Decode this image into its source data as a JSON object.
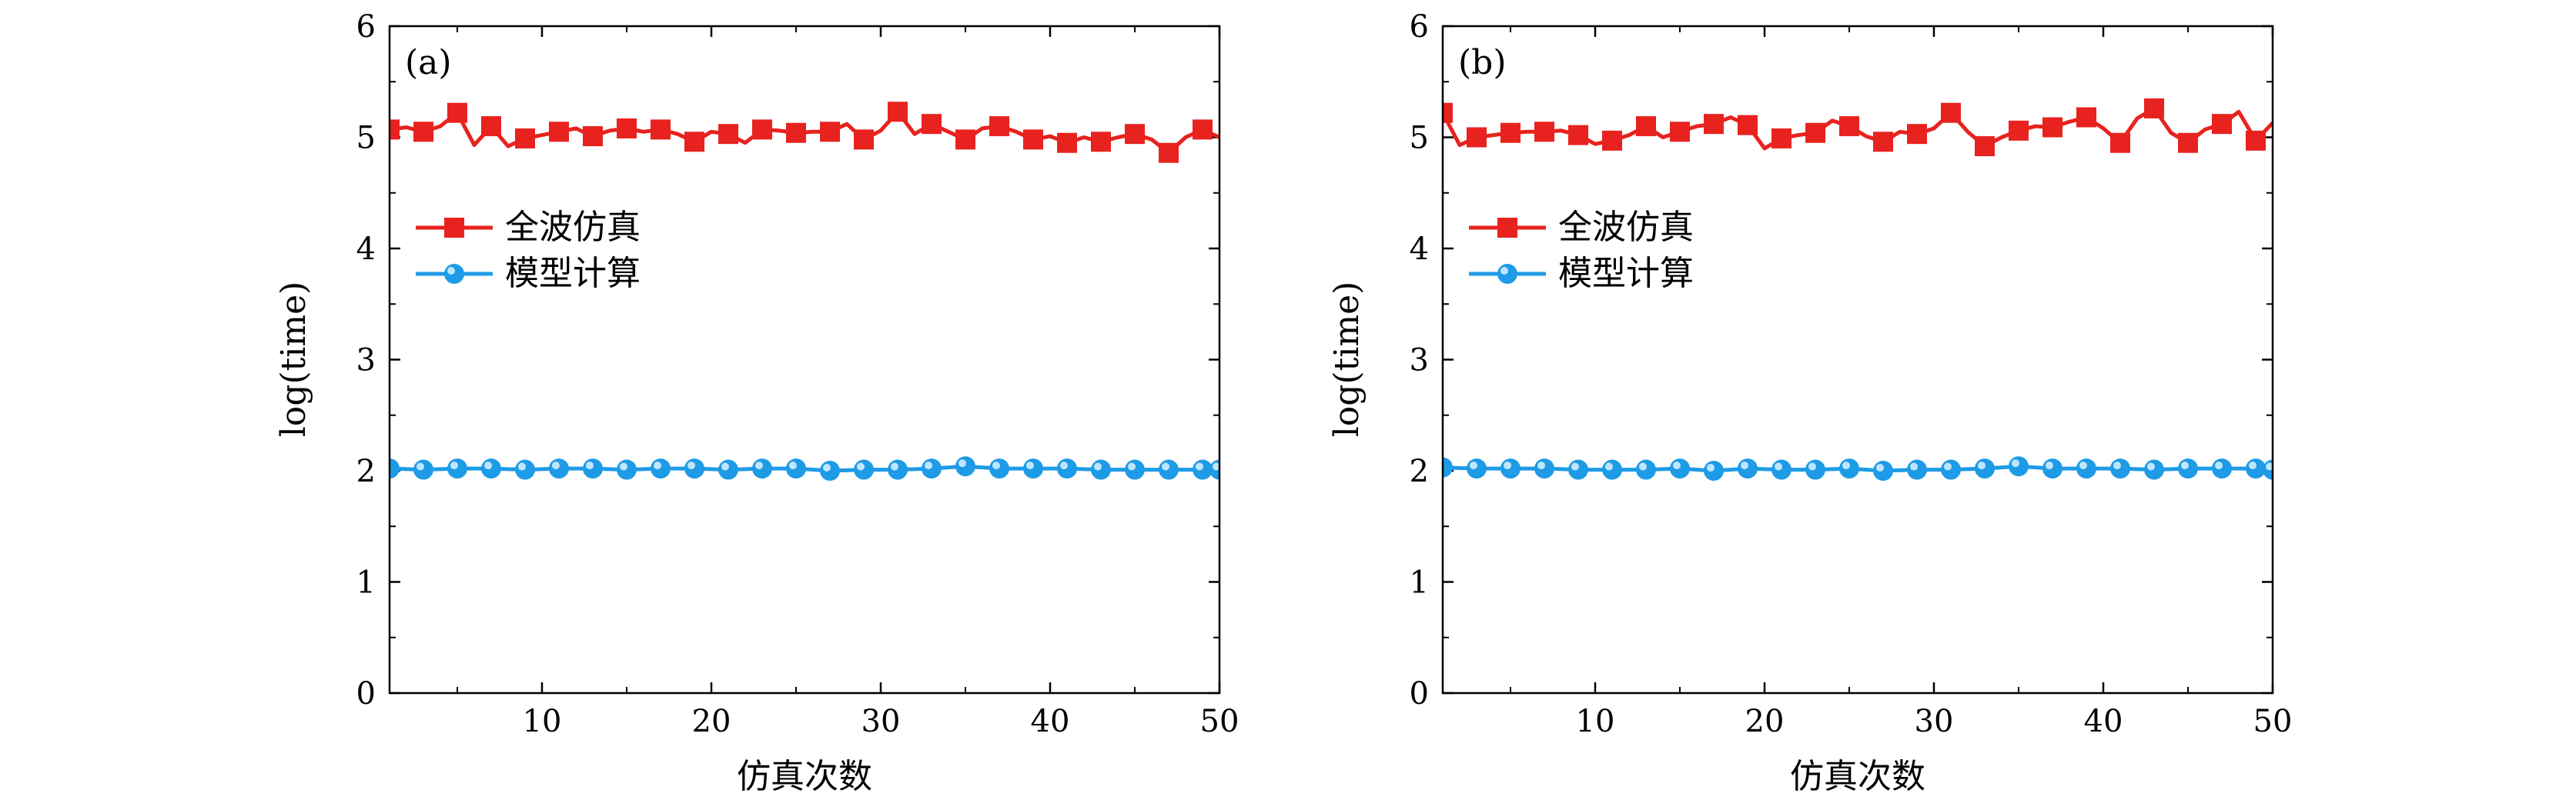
{
  "chart_data": [
    {
      "type": "line",
      "panel_label": "(a)",
      "xlabel": "仿真次数",
      "ylabel": "log(time)",
      "xlim": [
        1,
        50
      ],
      "ylim": [
        0,
        6
      ],
      "xticks": [
        10,
        20,
        30,
        40,
        50
      ],
      "yticks": [
        0,
        1,
        2,
        3,
        4,
        5,
        6
      ],
      "legend_position": "middle-left",
      "series": [
        {
          "name": "全波仿真",
          "color": "#e8221e",
          "marker": "square",
          "x": [
            1,
            2,
            3,
            4,
            5,
            6,
            7,
            8,
            9,
            10,
            11,
            12,
            13,
            14,
            15,
            16,
            17,
            18,
            19,
            20,
            21,
            22,
            23,
            24,
            25,
            26,
            27,
            28,
            29,
            30,
            31,
            32,
            33,
            34,
            35,
            36,
            37,
            38,
            39,
            40,
            41,
            42,
            43,
            44,
            45,
            46,
            47,
            48,
            49,
            50
          ],
          "values": [
            5.07,
            5.09,
            5.05,
            5.1,
            5.22,
            4.93,
            5.1,
            4.92,
            4.99,
            5.02,
            5.05,
            5.08,
            5.01,
            5.06,
            5.08,
            5.05,
            5.07,
            5.03,
            4.96,
            5.05,
            5.03,
            4.95,
            5.07,
            5.06,
            5.04,
            5.05,
            5.05,
            5.12,
            4.98,
            5.06,
            5.23,
            5.03,
            5.12,
            5.05,
            4.98,
            5.08,
            5.1,
            5.05,
            4.98,
            5.01,
            4.95,
            5.0,
            4.96,
            5.0,
            5.03,
            4.98,
            4.86,
            5.0,
            5.07,
            5.0
          ]
        },
        {
          "name": "模型计算",
          "color": "#1e9be6",
          "marker": "circle",
          "x": [
            1,
            3,
            5,
            7,
            9,
            11,
            13,
            15,
            17,
            19,
            21,
            23,
            25,
            27,
            29,
            31,
            33,
            35,
            37,
            39,
            41,
            43,
            45,
            47,
            49,
            50
          ],
          "values": [
            2.02,
            2.01,
            2.02,
            2.02,
            2.01,
            2.02,
            2.02,
            2.01,
            2.02,
            2.02,
            2.01,
            2.02,
            2.02,
            2.0,
            2.01,
            2.01,
            2.02,
            2.04,
            2.02,
            2.02,
            2.02,
            2.01,
            2.01,
            2.01,
            2.01,
            2.01
          ]
        }
      ]
    },
    {
      "type": "line",
      "panel_label": "(b)",
      "xlabel": "仿真次数",
      "ylabel": "log(time)",
      "xlim": [
        1,
        50
      ],
      "ylim": [
        0,
        6
      ],
      "xticks": [
        10,
        20,
        30,
        40,
        50
      ],
      "yticks": [
        0,
        1,
        2,
        3,
        4,
        5,
        6
      ],
      "legend_position": "middle-left",
      "series": [
        {
          "name": "全波仿真",
          "color": "#e8221e",
          "marker": "square",
          "x": [
            1,
            2,
            3,
            4,
            5,
            6,
            7,
            8,
            9,
            10,
            11,
            12,
            13,
            14,
            15,
            16,
            17,
            18,
            19,
            20,
            21,
            22,
            23,
            24,
            25,
            26,
            27,
            28,
            29,
            30,
            31,
            32,
            33,
            34,
            35,
            36,
            37,
            38,
            39,
            40,
            41,
            42,
            43,
            44,
            45,
            46,
            47,
            48,
            49,
            50
          ],
          "values": [
            5.22,
            4.93,
            5.0,
            5.02,
            5.04,
            5.05,
            5.05,
            5.06,
            5.02,
            4.94,
            4.97,
            5.02,
            5.1,
            5.0,
            5.05,
            5.1,
            5.12,
            5.18,
            5.11,
            4.9,
            4.99,
            5.02,
            5.04,
            5.15,
            5.1,
            5.01,
            4.96,
            5.05,
            5.03,
            5.08,
            5.22,
            5.05,
            4.92,
            5.0,
            5.06,
            5.1,
            5.09,
            5.14,
            5.18,
            5.08,
            4.95,
            5.17,
            5.26,
            5.04,
            4.95,
            5.07,
            5.12,
            5.23,
            4.97,
            5.13
          ]
        },
        {
          "name": "模型计算",
          "color": "#1e9be6",
          "marker": "circle",
          "x": [
            1,
            3,
            5,
            7,
            9,
            11,
            13,
            15,
            17,
            19,
            21,
            23,
            25,
            27,
            29,
            31,
            33,
            35,
            37,
            39,
            41,
            43,
            45,
            47,
            49,
            50
          ],
          "values": [
            2.03,
            2.02,
            2.02,
            2.02,
            2.01,
            2.01,
            2.01,
            2.02,
            2.0,
            2.02,
            2.01,
            2.01,
            2.02,
            2.0,
            2.01,
            2.01,
            2.02,
            2.04,
            2.02,
            2.02,
            2.02,
            2.01,
            2.02,
            2.02,
            2.02,
            2.01
          ]
        }
      ]
    }
  ]
}
